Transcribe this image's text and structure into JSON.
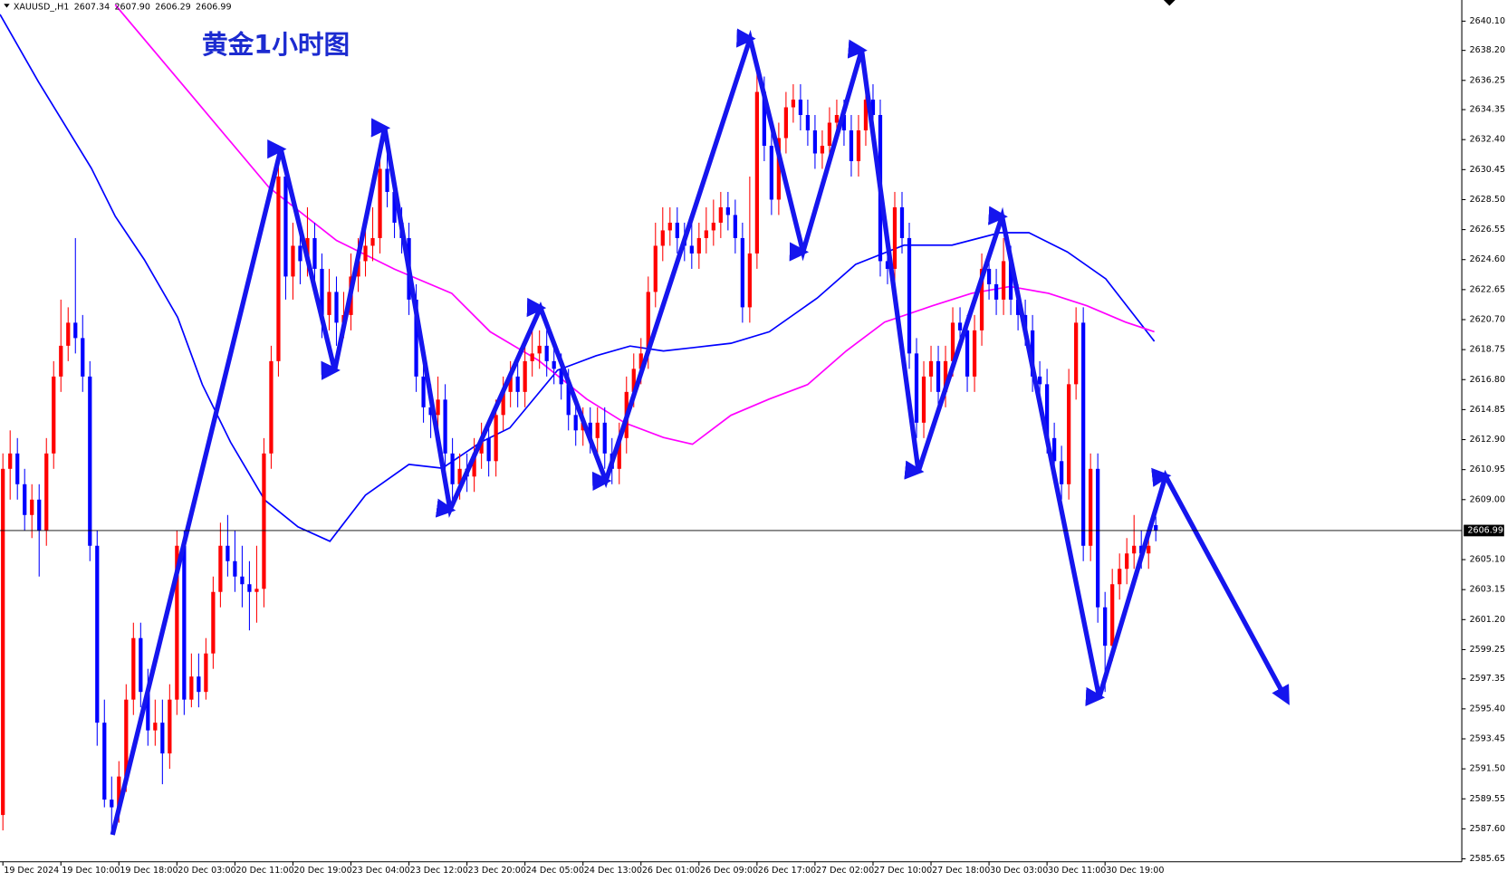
{
  "header": {
    "symbol": "XAUUSD_,H1",
    "ohlc": [
      "2607.34",
      "2607.90",
      "2606.29",
      "2606.99"
    ]
  },
  "chart_data": {
    "type": "candlestick",
    "title": "黄金1小时图",
    "up_color": "#ff0000",
    "down_color": "#0000ff",
    "xlim": [
      -0.4,
      201.2
    ],
    "ylim": [
      2585.46,
      2641.475
    ],
    "current_price": 2606.99,
    "yticks": [
      {
        "value": 2640.1,
        "label": "2640.10"
      },
      {
        "value": 2638.2,
        "label": "2638.20"
      },
      2636.25,
      2634.35,
      {
        "value": 2632.4,
        "label": "2632.40"
      },
      2630.45,
      {
        "value": 2628.5,
        "label": "2628.50"
      },
      2626.55,
      {
        "value": 2624.6,
        "label": "2624.60"
      },
      2622.65,
      {
        "value": 2620.7,
        "label": "2620.70"
      },
      2618.75,
      {
        "value": 2616.8,
        "label": "2616.80"
      },
      2614.85,
      {
        "value": 2612.9,
        "label": "2612.90"
      },
      2610.95,
      {
        "value": 2609,
        "label": "2609.00"
      },
      {
        "value": 2605.1,
        "label": "2605.10"
      },
      2603.15,
      {
        "value": 2601.2,
        "label": "2601.20"
      },
      2599.25,
      2597.35,
      {
        "value": 2595.4,
        "label": "2595.40"
      },
      2593.45,
      {
        "value": 2591.5,
        "label": "2591.50"
      },
      2589.55,
      {
        "value": 2587.6,
        "label": "2587.60"
      },
      2585.65
    ],
    "xticks": [
      {
        "value": 0,
        "label": "19 Dec 2024"
      },
      {
        "value": 8,
        "label": "19 Dec 10:00"
      },
      {
        "value": 16,
        "label": "19 Dec 18:00"
      },
      {
        "value": 24,
        "label": "20 Dec 03:00"
      },
      {
        "value": 32,
        "label": "20 Dec 11:00"
      },
      {
        "value": 40,
        "label": "20 Dec 19:00"
      },
      {
        "value": 48,
        "label": "23 Dec 04:00"
      },
      {
        "value": 56,
        "label": "23 Dec 12:00"
      },
      {
        "value": 64,
        "label": "23 Dec 20:00"
      },
      {
        "value": 72,
        "label": "24 Dec 05:00"
      },
      {
        "value": 80,
        "label": "24 Dec 13:00"
      },
      {
        "value": 88,
        "label": "26 Dec 01:00"
      },
      {
        "value": 96,
        "label": "26 Dec 09:00"
      },
      {
        "value": 104,
        "label": "26 Dec 17:00"
      },
      {
        "value": 112,
        "label": "27 Dec 02:00"
      },
      {
        "value": 120,
        "label": "27 Dec 10:00"
      },
      {
        "value": 128,
        "label": "27 Dec 18:00"
      },
      {
        "value": 136,
        "label": "30 Dec 03:00"
      },
      {
        "value": 144,
        "label": "30 Dec 11:00"
      },
      {
        "value": 152,
        "label": "30 Dec 19:00"
      }
    ],
    "ohlc": [
      [
        2588.5,
        2612,
        2587.5,
        2611
      ],
      [
        2611,
        2613.5,
        2609,
        2612
      ],
      [
        2612,
        2613,
        2609,
        2610
      ],
      [
        2610,
        2611,
        2607,
        2608
      ],
      [
        2608,
        2610,
        2606.5,
        2609
      ],
      [
        2609,
        2610,
        2604,
        2607
      ],
      [
        2607,
        2613,
        2606,
        2612
      ],
      [
        2612,
        2618,
        2611,
        2617
      ],
      [
        2617,
        2622,
        2616,
        2619
      ],
      [
        2619,
        2621.5,
        2618,
        2620.5
      ],
      [
        2620.5,
        2626,
        2618.5,
        2619.5
      ],
      [
        2619.5,
        2621,
        2616,
        2617
      ],
      [
        2617,
        2618,
        2605,
        2606
      ],
      [
        2606,
        2607,
        2593,
        2594.5
      ],
      [
        2594.5,
        2596,
        2589,
        2589.5
      ],
      [
        2589.5,
        2591,
        2587.5,
        2589
      ],
      [
        2589,
        2592,
        2588,
        2591
      ],
      [
        2591,
        2597,
        2590,
        2596
      ],
      [
        2596,
        2601,
        2595,
        2600
      ],
      [
        2600,
        2601,
        2595.5,
        2596.5
      ],
      [
        2596.5,
        2598,
        2593,
        2594
      ],
      [
        2594,
        2596,
        2593,
        2594.5
      ],
      [
        2594.5,
        2596,
        2590.5,
        2592.5
      ],
      [
        2592.5,
        2597,
        2591.5,
        2596
      ],
      [
        2596,
        2607,
        2595,
        2606
      ],
      [
        2606,
        2607,
        2595,
        2596
      ],
      [
        2596,
        2599,
        2595.5,
        2597.5
      ],
      [
        2597.5,
        2599,
        2595.5,
        2596.5
      ],
      [
        2596.5,
        2600,
        2596,
        2599
      ],
      [
        2599,
        2604,
        2598,
        2603
      ],
      [
        2603,
        2607.5,
        2602,
        2606
      ],
      [
        2606,
        2608,
        2604,
        2605
      ],
      [
        2605,
        2607,
        2603,
        2604
      ],
      [
        2604,
        2606,
        2602,
        2603.5
      ],
      [
        2603.5,
        2605,
        2600.5,
        2603
      ],
      [
        2603,
        2606,
        2601,
        2603.2
      ],
      [
        2603.2,
        2613,
        2602,
        2612
      ],
      [
        2612,
        2619,
        2611,
        2618
      ],
      [
        2618,
        2631,
        2617,
        2630
      ],
      [
        2630,
        2631,
        2622,
        2623.5
      ],
      [
        2623.5,
        2627,
        2622,
        2625.5
      ],
      [
        2625.5,
        2626.5,
        2623,
        2624.5
      ],
      [
        2624.5,
        2628,
        2623.5,
        2626
      ],
      [
        2626,
        2627,
        2623,
        2624
      ],
      [
        2624,
        2625,
        2619.5,
        2621
      ],
      [
        2621,
        2624,
        2620,
        2622.5
      ],
      [
        2622.5,
        2623.5,
        2619,
        2620.5
      ],
      [
        2620.5,
        2622.5,
        2619.5,
        2621
      ],
      [
        2621,
        2625,
        2620,
        2623.5
      ],
      [
        2623.5,
        2626,
        2622.5,
        2624.5
      ],
      [
        2624.5,
        2627,
        2623.5,
        2625.5
      ],
      [
        2625.5,
        2628,
        2624.5,
        2626
      ],
      [
        2626,
        2632,
        2625,
        2630.5
      ],
      [
        2630.5,
        2631.5,
        2628,
        2629
      ],
      [
        2629,
        2630,
        2626,
        2627
      ],
      [
        2627,
        2628,
        2625,
        2626
      ],
      [
        2626,
        2627,
        2621,
        2622
      ],
      [
        2622,
        2623,
        2616,
        2617
      ],
      [
        2617,
        2618,
        2614,
        2615
      ],
      [
        2615,
        2616.5,
        2613,
        2614.5
      ],
      [
        2614.5,
        2617,
        2613.5,
        2615.5
      ],
      [
        2615.5,
        2616.5,
        2611,
        2612
      ],
      [
        2612,
        2613,
        2609,
        2610
      ],
      [
        2610,
        2612,
        2609,
        2611
      ],
      [
        2611,
        2612,
        2609.5,
        2610.5
      ],
      [
        2610.5,
        2613,
        2609.5,
        2612
      ],
      [
        2612,
        2614,
        2611,
        2613
      ],
      [
        2613,
        2614,
        2610.5,
        2611.5
      ],
      [
        2611.5,
        2615.5,
        2610.5,
        2614.5
      ],
      [
        2614.5,
        2617,
        2613.5,
        2616
      ],
      [
        2616,
        2618,
        2615,
        2617
      ],
      [
        2617,
        2618,
        2615,
        2616
      ],
      [
        2616,
        2619,
        2615,
        2618
      ],
      [
        2618,
        2620,
        2617,
        2618.5
      ],
      [
        2618.5,
        2620,
        2617.5,
        2619
      ],
      [
        2619,
        2620,
        2617,
        2618
      ],
      [
        2618,
        2619,
        2616.5,
        2617.5
      ],
      [
        2617.5,
        2618.5,
        2615.5,
        2616.5
      ],
      [
        2616.5,
        2617.5,
        2613.5,
        2614.5
      ],
      [
        2614.5,
        2615.5,
        2612.5,
        2613.5
      ],
      [
        2613.5,
        2615,
        2612.5,
        2614
      ],
      [
        2614,
        2615,
        2612,
        2613
      ],
      [
        2613,
        2615,
        2612,
        2614
      ],
      [
        2614,
        2615,
        2611,
        2612
      ],
      [
        2612,
        2613,
        2610,
        2611
      ],
      [
        2611,
        2614,
        2610,
        2613
      ],
      [
        2613,
        2617,
        2612,
        2616
      ],
      [
        2616,
        2618.5,
        2615,
        2617.5
      ],
      [
        2617.5,
        2619.5,
        2616.5,
        2618.5
      ],
      [
        2618.5,
        2623.5,
        2617.5,
        2622.5
      ],
      [
        2622.5,
        2627,
        2621.5,
        2625.5
      ],
      [
        2625.5,
        2628,
        2624.5,
        2626.5
      ],
      [
        2626.5,
        2628,
        2625.5,
        2627
      ],
      [
        2627,
        2628,
        2625,
        2626
      ],
      [
        2626,
        2627,
        2624.5,
        2625.5
      ],
      [
        2625.5,
        2627,
        2624,
        2625
      ],
      [
        2625,
        2627,
        2624,
        2626
      ],
      [
        2626,
        2628,
        2625,
        2626.5
      ],
      [
        2626.5,
        2628.5,
        2625.5,
        2627
      ],
      [
        2627,
        2629,
        2626,
        2628
      ],
      [
        2628,
        2629,
        2626.5,
        2627.5
      ],
      [
        2627.5,
        2628.5,
        2625,
        2626
      ],
      [
        2626,
        2627,
        2620.5,
        2621.5
      ],
      [
        2621.5,
        2630,
        2620.5,
        2625
      ],
      [
        2625,
        2637,
        2624,
        2635.5
      ],
      [
        2635.5,
        2636.5,
        2631,
        2632
      ],
      [
        2632,
        2633,
        2627.5,
        2628.5
      ],
      [
        2628.5,
        2633.5,
        2627.5,
        2632.5
      ],
      [
        2632.5,
        2635.5,
        2631.5,
        2634.5
      ],
      [
        2634.5,
        2636,
        2633.5,
        2635
      ],
      [
        2635,
        2636,
        2633,
        2634
      ],
      [
        2634,
        2635,
        2632,
        2633
      ],
      [
        2633,
        2634,
        2630.5,
        2631.5
      ],
      [
        2631.5,
        2633,
        2630.5,
        2632
      ],
      [
        2632,
        2634.5,
        2631,
        2633.5
      ],
      [
        2633.5,
        2635,
        2632.5,
        2634
      ],
      [
        2634,
        2635,
        2632,
        2633
      ],
      [
        2633,
        2634,
        2630,
        2631
      ],
      [
        2631,
        2634,
        2630,
        2633
      ],
      [
        2633,
        2636,
        2632,
        2635
      ],
      [
        2635,
        2636,
        2633,
        2634
      ],
      [
        2634,
        2635,
        2623.5,
        2624.5
      ],
      [
        2624.5,
        2625.5,
        2623,
        2624
      ],
      [
        2624,
        2629,
        2623,
        2628
      ],
      [
        2628,
        2629,
        2625,
        2626
      ],
      [
        2626,
        2627,
        2617.5,
        2618.5
      ],
      [
        2618.5,
        2619.5,
        2613,
        2614
      ],
      [
        2614,
        2618,
        2613,
        2617
      ],
      [
        2617,
        2619,
        2616,
        2618
      ],
      [
        2618,
        2619,
        2615,
        2616
      ],
      [
        2616,
        2619,
        2615,
        2618
      ],
      [
        2618,
        2621.5,
        2617,
        2620.5
      ],
      [
        2620.5,
        2621.5,
        2619,
        2620
      ],
      [
        2620,
        2621,
        2616,
        2617
      ],
      [
        2617,
        2621,
        2616,
        2620
      ],
      [
        2620,
        2625,
        2619,
        2624
      ],
      [
        2624,
        2625,
        2622,
        2623
      ],
      [
        2623,
        2624,
        2621,
        2622
      ],
      [
        2622,
        2626,
        2621,
        2624.5
      ],
      [
        2624.5,
        2625.5,
        2621,
        2622
      ],
      [
        2622,
        2623,
        2620,
        2621
      ],
      [
        2621,
        2622,
        2619,
        2620
      ],
      [
        2620,
        2621,
        2616,
        2617
      ],
      [
        2617,
        2618,
        2615.5,
        2616.5
      ],
      [
        2616.5,
        2617.5,
        2612,
        2613
      ],
      [
        2613,
        2614,
        2610.5,
        2611.5
      ],
      [
        2611.5,
        2612.5,
        2609,
        2610
      ],
      [
        2610,
        2617.5,
        2609,
        2616.5
      ],
      [
        2616.5,
        2621.5,
        2615.5,
        2620.5
      ],
      [
        2620.5,
        2621.5,
        2605,
        2606
      ],
      [
        2606,
        2612,
        2605,
        2611
      ],
      [
        2611,
        2612,
        2601,
        2602
      ],
      [
        2602,
        2603,
        2596.5,
        2599.5
      ],
      [
        2599.5,
        2604.5,
        2598.5,
        2603.5
      ],
      [
        2603.5,
        2605.5,
        2602.5,
        2604.5
      ],
      [
        2604.5,
        2606.5,
        2603.5,
        2605.5
      ],
      [
        2605.5,
        2608,
        2604.5,
        2606
      ],
      [
        2606,
        2607,
        2604.5,
        2605.5
      ],
      [
        2605.5,
        2607,
        2604.5,
        2606
      ],
      [
        2607.34,
        2607.9,
        2606.29,
        2606.99
      ]
    ],
    "lines": [
      {
        "color": "#0000ff",
        "x": [
          -0.4,
          4.9,
          12.2,
          15.5,
          19.5,
          24.1,
          27.5,
          31.4,
          36.1,
          40.7,
          45.1,
          50.0,
          56.0,
          60.6,
          65.9,
          69.9,
          76.5,
          81.8,
          86.5,
          91.1,
          100.4,
          105.7,
          112.3,
          117.6,
          124.3,
          130.9,
          137.5,
          141.5,
          146.8,
          152.1,
          158.8
        ],
        "values": [
          2640.54,
          2636.16,
          2630.54,
          2627.41,
          2624.6,
          2620.85,
          2616.48,
          2612.73,
          2608.98,
          2607.23,
          2606.29,
          2609.29,
          2611.29,
          2611.04,
          2612.73,
          2613.66,
          2617.41,
          2618.35,
          2618.98,
          2618.66,
          2619.16,
          2619.91,
          2622.1,
          2624.29,
          2625.54,
          2625.54,
          2626.35,
          2626.35,
          2625.1,
          2623.35,
          2619.29
        ]
      },
      {
        "color": "#ff00ff",
        "x": [
          15.5,
          26.1,
          36.7,
          46.0,
          54.0,
          61.9,
          67.2,
          73.9,
          80.5,
          85.8,
          91.1,
          95.1,
          100.4,
          105.7,
          111.0,
          116.3,
          121.6,
          128.2,
          133.6,
          138.9,
          144.2,
          149.5,
          154.8,
          158.8
        ],
        "values": [
          2641.16,
          2635.23,
          2629.29,
          2625.85,
          2623.98,
          2622.41,
          2619.91,
          2618.04,
          2615.54,
          2613.98,
          2613.04,
          2612.6,
          2614.48,
          2615.54,
          2616.48,
          2618.66,
          2620.54,
          2621.6,
          2622.41,
          2622.85,
          2622.41,
          2621.6,
          2620.54,
          2619.91
        ]
      }
    ]
  }
}
